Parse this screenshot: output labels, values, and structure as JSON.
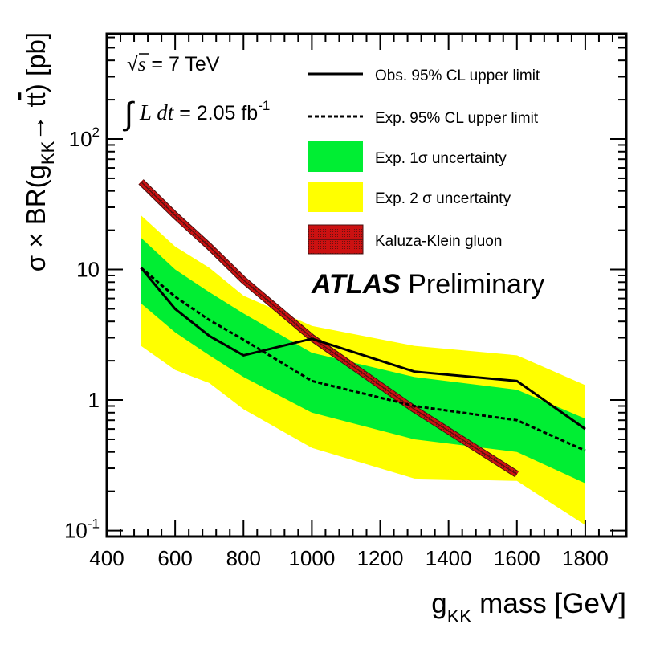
{
  "chart_data": {
    "type": "line",
    "scale": {
      "y": "log"
    },
    "xlim": [
      400,
      1920
    ],
    "ylim": [
      0.09,
      640
    ],
    "x_ticks": [
      400,
      600,
      800,
      1000,
      1200,
      1400,
      1600,
      1800
    ],
    "x_tick_labels": [
      "400",
      "600",
      "800",
      "1000",
      "1200",
      "1400",
      "1600",
      "1800"
    ],
    "y_ticks_major": [
      {
        "value": 0.1,
        "base": "10",
        "exp": "-1",
        "label": ""
      },
      {
        "value": 1,
        "base": "",
        "exp": "",
        "label": "1"
      },
      {
        "value": 10,
        "base": "",
        "exp": "",
        "label": "10"
      },
      {
        "value": 100,
        "base": "10",
        "exp": "2",
        "label": ""
      }
    ],
    "xlabel": {
      "main": "g",
      "sub": "KK",
      "rest": " mass [GeV]"
    },
    "ylabel": {
      "pre": "σ × BR(g",
      "sub": "KK",
      "arrow": "→ t",
      "tbar": "t",
      "post": ") [pb]"
    },
    "energy_label": {
      "sqrt": "√",
      "s": "s",
      "rest": " = 7 TeV"
    },
    "lumi_label": {
      "integral": "∫",
      "ldt": "L dt",
      "rest": " = 2.05 fb",
      "exp": "-1"
    },
    "brand": {
      "bold": "ATLAS",
      "rest": "Preliminary"
    },
    "legend": [
      {
        "key": "obs",
        "label": "Obs. 95% CL upper limit"
      },
      {
        "key": "exp",
        "label": "Exp. 95% CL upper limit"
      },
      {
        "key": "band1",
        "label": "Exp. 1σ uncertainty"
      },
      {
        "key": "band2",
        "label": "Exp. 2 σ uncertainty"
      },
      {
        "key": "kk",
        "label": "Kaluza-Klein gluon"
      }
    ],
    "colors": {
      "band1": "#00ee33",
      "band2": "#ffff00",
      "kk_fill": "#cc1111",
      "kk_edge": "#441111",
      "line": "#000000"
    },
    "series": [
      {
        "name": "Obs. 95% CL upper limit",
        "style": "solid",
        "x": [
          500,
          600,
          700,
          800,
          1000,
          1300,
          1600,
          1800
        ],
        "y": [
          10.3,
          5.0,
          3.1,
          2.2,
          2.95,
          1.65,
          1.4,
          0.6
        ]
      },
      {
        "name": "Exp. 95% CL upper limit",
        "style": "dashed",
        "x": [
          500,
          600,
          700,
          800,
          1000,
          1300,
          1600,
          1800
        ],
        "y": [
          10.3,
          6.2,
          4.1,
          2.9,
          1.4,
          0.9,
          0.7,
          0.41
        ]
      },
      {
        "name": "Exp. 1σ uncertainty",
        "style": "band",
        "x": [
          500,
          600,
          700,
          800,
          1000,
          1300,
          1600,
          1800
        ],
        "lower": [
          5.5,
          3.3,
          2.2,
          1.5,
          0.8,
          0.5,
          0.4,
          0.23
        ],
        "upper": [
          17.5,
          10.0,
          6.7,
          4.6,
          2.3,
          1.5,
          1.2,
          0.72
        ]
      },
      {
        "name": "Exp. 2 σ uncertainty",
        "style": "band",
        "x": [
          500,
          600,
          700,
          800,
          1000,
          1300,
          1600,
          1800
        ],
        "lower": [
          2.6,
          1.7,
          1.35,
          0.85,
          0.43,
          0.25,
          0.24,
          0.11
        ],
        "upper": [
          26.0,
          15.0,
          10.3,
          6.3,
          3.7,
          2.6,
          2.2,
          1.3
        ]
      },
      {
        "name": "Kaluza-Klein gluon",
        "style": "hatched",
        "x": [
          500,
          600,
          700,
          800,
          1000,
          1300,
          1600
        ],
        "y": [
          47,
          26,
          15,
          8.3,
          3.0,
          0.85,
          0.27
        ]
      }
    ]
  }
}
